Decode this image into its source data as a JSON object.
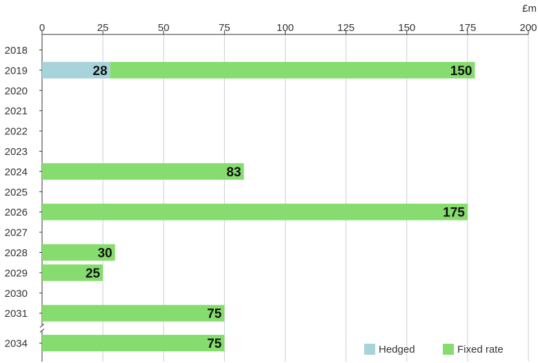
{
  "chart_data": {
    "type": "bar",
    "orientation": "horizontal",
    "stacked": true,
    "unit": "£m",
    "xlim": [
      0,
      200
    ],
    "x_ticks": [
      0,
      25,
      50,
      75,
      100,
      125,
      150,
      175,
      200
    ],
    "axis_position": "top",
    "grid": true,
    "axis_break_between": [
      "2031",
      "2034"
    ],
    "categories": [
      "2018",
      "2019",
      "2020",
      "2021",
      "2022",
      "2023",
      "2024",
      "2025",
      "2026",
      "2027",
      "2028",
      "2029",
      "2030",
      "2031",
      "2034"
    ],
    "series": [
      {
        "name": "Hedged",
        "color": "#a7d3da",
        "values": [
          0,
          28,
          0,
          0,
          0,
          0,
          0,
          0,
          0,
          0,
          0,
          0,
          0,
          0,
          0
        ],
        "labels": [
          "",
          "28",
          "",
          "",
          "",
          "",
          "",
          "",
          "",
          "",
          "",
          "",
          "",
          "",
          ""
        ]
      },
      {
        "name": "Fixed rate",
        "color": "#86dc6e",
        "values": [
          0,
          150,
          0,
          0,
          0,
          0,
          83,
          0,
          175,
          0,
          30,
          25,
          0,
          75,
          75
        ],
        "labels": [
          "",
          "150",
          "",
          "",
          "",
          "",
          "83",
          "",
          "175",
          "",
          "30",
          "25",
          "",
          "75",
          "75"
        ]
      }
    ],
    "legend_position": "bottom-right"
  }
}
